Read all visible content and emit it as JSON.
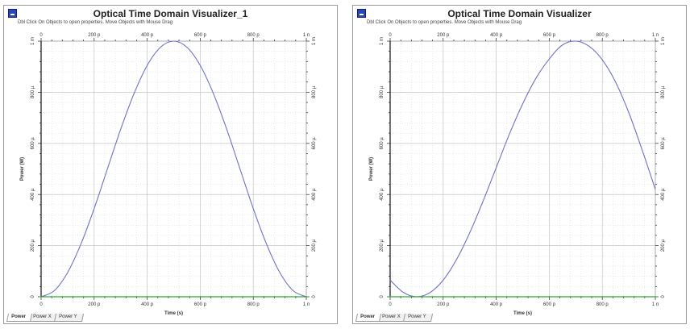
{
  "panels": [
    {
      "title": "Optical Time Domain Visualizer_1",
      "hint": "Dbl Click On Objects to open properties.  Move Objects with Mouse Drag",
      "x_ticks": [
        "0",
        "200 p",
        "400 p",
        "600 p",
        "800 p",
        "1 n"
      ],
      "y_ticks": [
        "0",
        "200 µ",
        "400 µ",
        "600 µ",
        "800 µ",
        "1 m"
      ],
      "x_label": "Time (s)",
      "y_label": "Power (W)",
      "tabs": [
        "Power",
        "Power X",
        "Power Y"
      ],
      "active_tab": 0
    },
    {
      "title": "Optical Time Domain Visualizer",
      "hint": "Dbl Click On Objects to open properties.  Move Objects with Mouse Drag",
      "x_ticks": [
        "0",
        "200 p",
        "400 p",
        "600 p",
        "800 p",
        "1 n"
      ],
      "y_ticks": [
        "0",
        "200 µ",
        "400 µ",
        "600 µ",
        "800 µ",
        "1 m"
      ],
      "x_label": "Time (s)",
      "y_label": "Power (W)",
      "tabs": [
        "Power",
        "Power X",
        "Power Y"
      ],
      "active_tab": 0
    }
  ],
  "chart_data": [
    {
      "type": "line",
      "xlabel": "Time (s)",
      "ylabel": "Power (W)",
      "xlim": [
        0,
        1e-09
      ],
      "ylim": [
        0,
        0.001
      ],
      "series": [
        {
          "color": "#6f6fc9",
          "x": [
            0,
            5e-11,
            1e-10,
            1.5e-10,
            2e-10,
            2.5e-10,
            3e-10,
            3.5e-10,
            4e-10,
            4.5e-10,
            5e-10,
            5.5e-10,
            6e-10,
            6.5e-10,
            7e-10,
            7.5e-10,
            8e-10,
            8.5e-10,
            9e-10,
            9.5e-10,
            1e-09
          ],
          "y": [
            0,
            2.4e-05,
            9.5e-05,
            0.000206,
            0.000345,
            0.0005,
            0.000655,
            0.000794,
            0.000905,
            0.000976,
            0.001,
            0.000976,
            0.000905,
            0.000794,
            0.000655,
            0.0005,
            0.000345,
            0.000206,
            9.5e-05,
            2.4e-05,
            0
          ]
        },
        {
          "color": "#2ea82e",
          "x": [
            0,
            1e-09
          ],
          "y": [
            0,
            0
          ]
        }
      ]
    },
    {
      "type": "line",
      "xlabel": "Time (s)",
      "ylabel": "Power (W)",
      "xlim": [
        0,
        1e-09
      ],
      "ylim": [
        0,
        0.001
      ],
      "series": [
        {
          "color": "#6f6fc9",
          "x": [
            0,
            5e-11,
            1e-10,
            1.5e-10,
            2e-10,
            2.5e-10,
            3e-10,
            3.5e-10,
            4e-10,
            4.5e-10,
            5e-10,
            5.5e-10,
            6e-10,
            6.5e-10,
            7e-10,
            7.5e-10,
            8e-10,
            8.5e-10,
            9e-10,
            9.5e-10,
            1e-09
          ],
          "y": [
            6.5e-05,
            1.7e-05,
            0,
            1.6e-05,
            6.5e-05,
            0.000145,
            0.00025,
            0.000373,
            0.000505,
            0.000637,
            0.000755,
            0.000855,
            0.00093,
            0.000985,
            0.001,
            0.00098,
            0.000927,
            0.00084,
            0.00072,
            0.000575,
            0.00042
          ]
        },
        {
          "color": "#2ea82e",
          "x": [
            0,
            1e-09
          ],
          "y": [
            0,
            0
          ]
        }
      ]
    }
  ]
}
